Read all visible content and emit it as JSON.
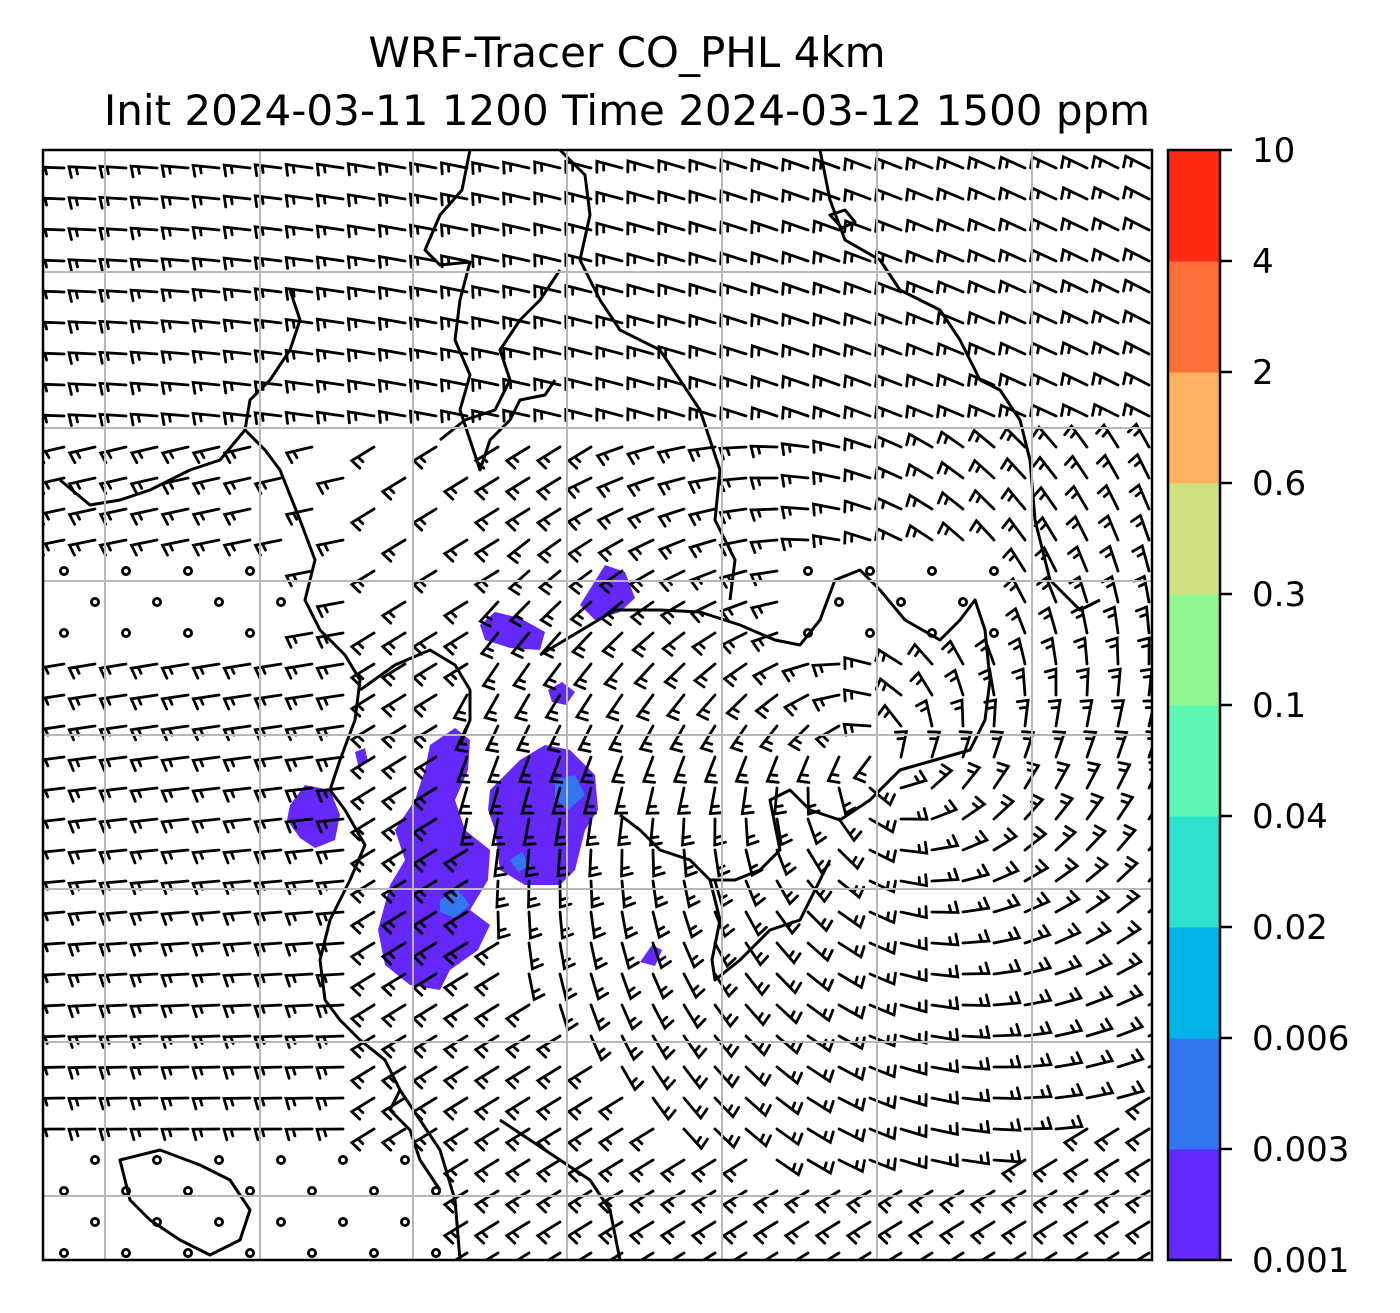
{
  "title": {
    "line1": "WRF-Tracer CO_PHL 4km",
    "line2": "Init 2024-03-11 1200 Time 2024-03-12 1500 ppm"
  },
  "colorbar": {
    "levels": [
      "0.001",
      "0.003",
      "0.006",
      "0.02",
      "0.04",
      "0.1",
      "0.3",
      "0.6",
      "2",
      "4",
      "10"
    ],
    "colors": [
      "#6428fa",
      "#3276f2",
      "#00b4ea",
      "#2ee0d0",
      "#5cf8b4",
      "#90f690",
      "#d0e080",
      "#feb260",
      "#ff7039",
      "#ff2a12"
    ]
  },
  "map": {
    "gridlines": true,
    "wind_barbs": true,
    "plume_color": "#6428fa"
  }
}
